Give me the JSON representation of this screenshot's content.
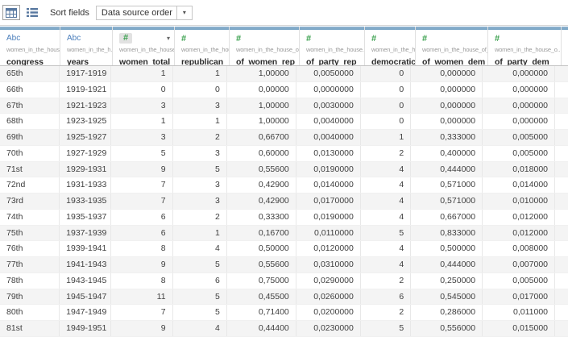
{
  "toolbar": {
    "sort_fields_label": "Sort fields",
    "sort_order_value": "Data source order"
  },
  "colors": {
    "header_accent": "#76a3c5",
    "number_type_green": "#3ba14f",
    "string_type_blue": "#4a7ebb",
    "row_band": "#f4f4f4"
  },
  "table": {
    "sorted_column": "women_total",
    "columns": [
      {
        "name": "congress",
        "type": "Abc",
        "field": "women_in_the_house..."
      },
      {
        "name": "years",
        "type": "Abc",
        "field": "women_in_the_h..."
      },
      {
        "name": "women_total",
        "type": "#",
        "field": "women_in_the_house_..."
      },
      {
        "name": "republican",
        "type": "#",
        "field": "women_in_the_hou..."
      },
      {
        "name": "of_women_rep",
        "type": "#",
        "field": "women_in_the_house_of..."
      },
      {
        "name": "of_party_rep",
        "type": "#",
        "field": "women_in_the_house..."
      },
      {
        "name": "democratic",
        "type": "#",
        "field": "women_in_the_hous..."
      },
      {
        "name": "of_women_dem",
        "type": "#",
        "field": "women_in_the_house_of_r..."
      },
      {
        "name": "of_party_dem",
        "type": "#",
        "field": "women_in_the_house_o..."
      }
    ],
    "rows": [
      [
        "65th",
        "1917-1919",
        "1",
        "1",
        "1,00000",
        "0,0050000",
        "0",
        "0,000000",
        "0,000000"
      ],
      [
        "66th",
        "1919-1921",
        "0",
        "0",
        "0,00000",
        "0,0000000",
        "0",
        "0,000000",
        "0,000000"
      ],
      [
        "67th",
        "1921-1923",
        "3",
        "3",
        "1,00000",
        "0,0030000",
        "0",
        "0,000000",
        "0,000000"
      ],
      [
        "68th",
        "1923-1925",
        "1",
        "1",
        "1,00000",
        "0,0040000",
        "0",
        "0,000000",
        "0,000000"
      ],
      [
        "69th",
        "1925-1927",
        "3",
        "2",
        "0,66700",
        "0,0040000",
        "1",
        "0,333000",
        "0,005000"
      ],
      [
        "70th",
        "1927-1929",
        "5",
        "3",
        "0,60000",
        "0,0130000",
        "2",
        "0,400000",
        "0,005000"
      ],
      [
        "71st",
        "1929-1931",
        "9",
        "5",
        "0,55600",
        "0,0190000",
        "4",
        "0,444000",
        "0,018000"
      ],
      [
        "72nd",
        "1931-1933",
        "7",
        "3",
        "0,42900",
        "0,0140000",
        "4",
        "0,571000",
        "0,014000"
      ],
      [
        "73rd",
        "1933-1935",
        "7",
        "3",
        "0,42900",
        "0,0170000",
        "4",
        "0,571000",
        "0,010000"
      ],
      [
        "74th",
        "1935-1937",
        "6",
        "2",
        "0,33300",
        "0,0190000",
        "4",
        "0,667000",
        "0,012000"
      ],
      [
        "75th",
        "1937-1939",
        "6",
        "1",
        "0,16700",
        "0,0110000",
        "5",
        "0,833000",
        "0,012000"
      ],
      [
        "76th",
        "1939-1941",
        "8",
        "4",
        "0,50000",
        "0,0120000",
        "4",
        "0,500000",
        "0,008000"
      ],
      [
        "77th",
        "1941-1943",
        "9",
        "5",
        "0,55600",
        "0,0310000",
        "4",
        "0,444000",
        "0,007000"
      ],
      [
        "78th",
        "1943-1945",
        "8",
        "6",
        "0,75000",
        "0,0290000",
        "2",
        "0,250000",
        "0,005000"
      ],
      [
        "79th",
        "1945-1947",
        "11",
        "5",
        "0,45500",
        "0,0260000",
        "6",
        "0,545000",
        "0,017000"
      ],
      [
        "80th",
        "1947-1949",
        "7",
        "5",
        "0,71400",
        "0,0200000",
        "2",
        "0,286000",
        "0,011000"
      ],
      [
        "81st",
        "1949-1951",
        "9",
        "4",
        "0,44400",
        "0,0230000",
        "5",
        "0,556000",
        "0,015000"
      ]
    ]
  }
}
